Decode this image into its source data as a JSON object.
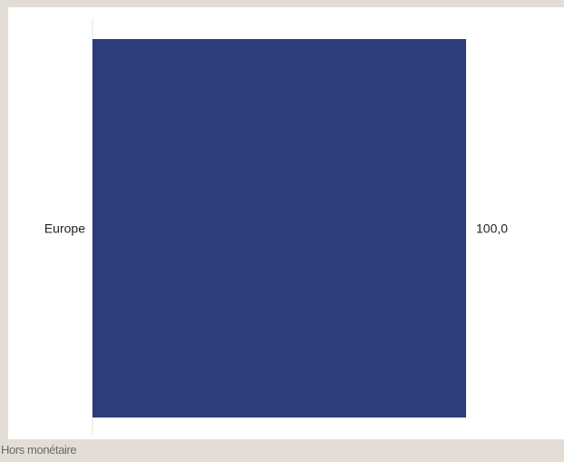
{
  "chart_data": {
    "type": "bar",
    "orientation": "horizontal",
    "categories": [
      "Europe"
    ],
    "values": [
      100.0
    ],
    "value_labels": [
      "100,0"
    ],
    "xlim": [
      0,
      100
    ],
    "title": "",
    "xlabel": "",
    "ylabel": "",
    "grid": false,
    "legend": "none",
    "bar_color": "#2e3d7e"
  },
  "footer": {
    "note": "Hors monétaire"
  },
  "colors": {
    "background": "#e4ddd6",
    "panel": "#ffffff",
    "bar": "#2e3d7e",
    "axis": "#e6e6e6",
    "text": "#222222"
  }
}
